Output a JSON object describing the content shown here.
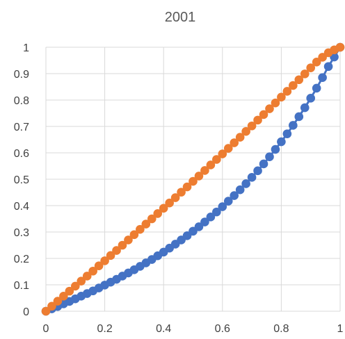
{
  "chart_data": {
    "type": "scatter",
    "title": "2001",
    "xlabel": "",
    "ylabel": "",
    "xlim": [
      0,
      1
    ],
    "ylim": [
      0,
      1
    ],
    "x_ticks": [
      "0",
      "0.2",
      "0.4",
      "0.6",
      "0.8",
      "1"
    ],
    "y_ticks": [
      "0",
      "0.1",
      "0.2",
      "0.3",
      "0.4",
      "0.5",
      "0.6",
      "0.7",
      "0.8",
      "0.9",
      "1"
    ],
    "grid": true,
    "legend": "none",
    "colors": {
      "series_1": "#4472C4",
      "series_2": "#ED7D31"
    },
    "series": [
      {
        "x": [
          0,
          0.02,
          0.04,
          0.06,
          0.08,
          0.1,
          0.12,
          0.14,
          0.16,
          0.18,
          0.2,
          0.22,
          0.24,
          0.26,
          0.28,
          0.3,
          0.32,
          0.34,
          0.36,
          0.38,
          0.4,
          0.42,
          0.44,
          0.46,
          0.48,
          0.5,
          0.52,
          0.54,
          0.56,
          0.58,
          0.6,
          0.62,
          0.64,
          0.66,
          0.68,
          0.7,
          0.72,
          0.74,
          0.76,
          0.78,
          0.8,
          0.82,
          0.84,
          0.86,
          0.88,
          0.9,
          0.92,
          0.94,
          0.96,
          0.98,
          1.0
        ],
        "values": [
          0,
          0.009,
          0.018,
          0.028,
          0.037,
          0.047,
          0.057,
          0.067,
          0.077,
          0.088,
          0.099,
          0.11,
          0.121,
          0.133,
          0.145,
          0.157,
          0.17,
          0.183,
          0.196,
          0.21,
          0.224,
          0.239,
          0.254,
          0.27,
          0.286,
          0.303,
          0.32,
          0.338,
          0.357,
          0.376,
          0.396,
          0.417,
          0.438,
          0.46,
          0.483,
          0.507,
          0.532,
          0.558,
          0.585,
          0.613,
          0.642,
          0.672,
          0.704,
          0.737,
          0.771,
          0.807,
          0.845,
          0.885,
          0.927,
          0.963,
          1.0
        ]
      },
      {
        "x": [
          0,
          0.02,
          0.04,
          0.06,
          0.08,
          0.1,
          0.12,
          0.14,
          0.16,
          0.18,
          0.2,
          0.22,
          0.24,
          0.26,
          0.28,
          0.3,
          0.32,
          0.34,
          0.36,
          0.38,
          0.4,
          0.42,
          0.44,
          0.46,
          0.48,
          0.5,
          0.52,
          0.54,
          0.56,
          0.58,
          0.6,
          0.62,
          0.64,
          0.66,
          0.68,
          0.7,
          0.72,
          0.74,
          0.76,
          0.78,
          0.8,
          0.82,
          0.84,
          0.86,
          0.88,
          0.9,
          0.92,
          0.94,
          0.96,
          0.98,
          1.0
        ],
        "values": [
          0,
          0.019,
          0.038,
          0.057,
          0.076,
          0.095,
          0.114,
          0.133,
          0.152,
          0.172,
          0.191,
          0.211,
          0.23,
          0.25,
          0.27,
          0.29,
          0.31,
          0.33,
          0.35,
          0.37,
          0.39,
          0.41,
          0.43,
          0.451,
          0.471,
          0.492,
          0.512,
          0.533,
          0.554,
          0.575,
          0.596,
          0.617,
          0.638,
          0.659,
          0.681,
          0.702,
          0.724,
          0.745,
          0.767,
          0.789,
          0.811,
          0.833,
          0.855,
          0.877,
          0.899,
          0.922,
          0.944,
          0.962,
          0.979,
          0.99,
          1.0
        ]
      }
    ]
  }
}
